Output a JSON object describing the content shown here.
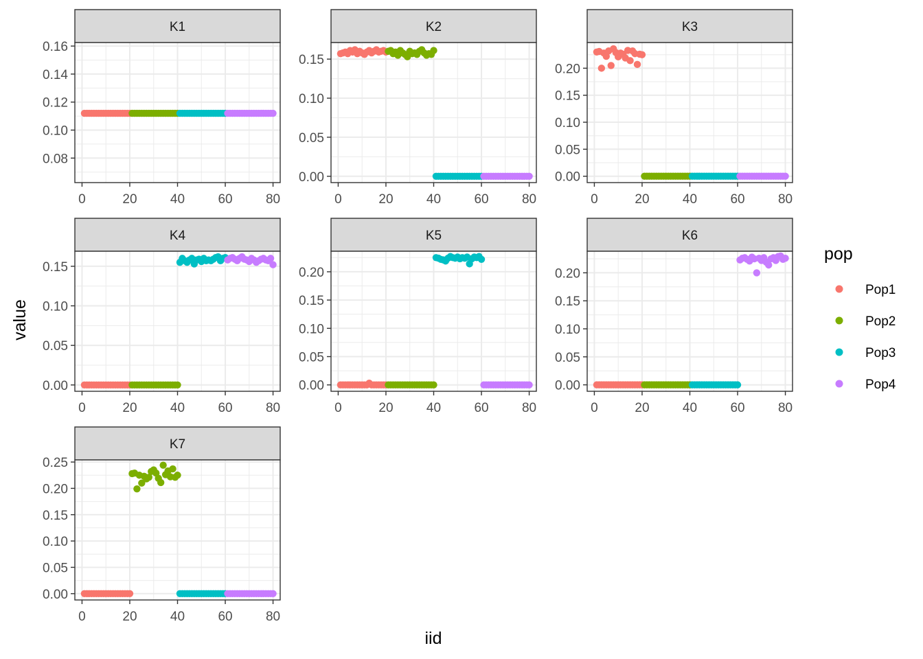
{
  "chart_data": {
    "type": "scatter",
    "xlabel": "iid",
    "ylabel": "value",
    "legend": {
      "title": "pop",
      "placement": "right",
      "entries": [
        {
          "name": "Pop1",
          "color": "#F8766D"
        },
        {
          "name": "Pop2",
          "color": "#7CAE00"
        },
        {
          "name": "Pop3",
          "color": "#00BFC4"
        },
        {
          "name": "Pop4",
          "color": "#C77CFF"
        }
      ]
    },
    "grid": true,
    "x_ticks": [
      0,
      20,
      40,
      60,
      80
    ],
    "xlim": [
      -3,
      83
    ],
    "panels": [
      {
        "title": "K1",
        "ylim": [
          0.0625,
          0.1625
        ],
        "y_ticks": [
          "0.08",
          "0.10",
          "0.12",
          "0.14",
          "0.16"
        ],
        "y_tick_values": [
          0.08,
          0.1,
          0.12,
          0.14,
          0.16
        ],
        "series": [
          {
            "name": "Pop1",
            "x_range": [
              1,
              20
            ],
            "values": [
              0.112,
              0.112,
              0.112,
              0.112,
              0.112,
              0.112,
              0.112,
              0.112,
              0.112,
              0.112,
              0.112,
              0.112,
              0.112,
              0.112,
              0.112,
              0.112,
              0.112,
              0.112,
              0.112,
              0.112
            ]
          },
          {
            "name": "Pop2",
            "x_range": [
              21,
              40
            ],
            "values": [
              0.112,
              0.112,
              0.112,
              0.112,
              0.112,
              0.112,
              0.112,
              0.112,
              0.112,
              0.112,
              0.112,
              0.112,
              0.112,
              0.112,
              0.112,
              0.112,
              0.112,
              0.112,
              0.112,
              0.112
            ]
          },
          {
            "name": "Pop3",
            "x_range": [
              41,
              60
            ],
            "values": [
              0.112,
              0.112,
              0.112,
              0.112,
              0.112,
              0.112,
              0.112,
              0.112,
              0.112,
              0.112,
              0.112,
              0.112,
              0.112,
              0.112,
              0.112,
              0.112,
              0.112,
              0.112,
              0.112,
              0.112
            ]
          },
          {
            "name": "Pop4",
            "x_range": [
              61,
              80
            ],
            "values": [
              0.112,
              0.112,
              0.112,
              0.112,
              0.112,
              0.112,
              0.112,
              0.112,
              0.112,
              0.112,
              0.112,
              0.112,
              0.112,
              0.112,
              0.112,
              0.112,
              0.112,
              0.112,
              0.112,
              0.112
            ]
          }
        ]
      },
      {
        "title": "K2",
        "ylim": [
          -0.0081,
          0.1712
        ],
        "y_ticks": [
          "0.00",
          "0.05",
          "0.10",
          "0.15"
        ],
        "y_tick_values": [
          0,
          0.05,
          0.1,
          0.15
        ],
        "series": [
          {
            "name": "Pop1",
            "x_range": [
              1,
              20
            ],
            "values": [
              0.157,
              0.158,
              0.159,
              0.157,
              0.161,
              0.159,
              0.162,
              0.157,
              0.16,
              0.158,
              0.156,
              0.159,
              0.161,
              0.158,
              0.16,
              0.162,
              0.159,
              0.16,
              0.161,
              0.159
            ]
          },
          {
            "name": "Pop2",
            "x_range": [
              21,
              40
            ],
            "values": [
              0.16,
              0.161,
              0.157,
              0.159,
              0.155,
              0.161,
              0.158,
              0.156,
              0.153,
              0.16,
              0.157,
              0.158,
              0.156,
              0.16,
              0.162,
              0.158,
              0.155,
              0.157,
              0.156,
              0.161
            ]
          },
          {
            "name": "Pop3",
            "x_range": [
              41,
              60
            ],
            "values": [
              0,
              0,
              0,
              0,
              0,
              0,
              0,
              0,
              0,
              0,
              0,
              0,
              0,
              0,
              0,
              0,
              0,
              0,
              0,
              0
            ]
          },
          {
            "name": "Pop4",
            "x_range": [
              61,
              80
            ],
            "values": [
              0,
              0,
              0,
              0,
              0,
              0,
              0,
              0,
              0,
              0,
              0,
              0,
              0,
              0,
              0,
              0,
              0,
              0,
              0,
              0
            ]
          }
        ]
      },
      {
        "title": "K3",
        "ylim": [
          -0.0118,
          0.2475
        ],
        "y_ticks": [
          "0.00",
          "0.05",
          "0.10",
          "0.15",
          "0.20"
        ],
        "y_tick_values": [
          0,
          0.05,
          0.1,
          0.15,
          0.2
        ],
        "series": [
          {
            "name": "Pop1",
            "x_range": [
              1,
              20
            ],
            "values": [
              0.23,
              0.231,
              0.2,
              0.228,
              0.222,
              0.232,
              0.205,
              0.236,
              0.229,
              0.221,
              0.228,
              0.226,
              0.219,
              0.233,
              0.214,
              0.232,
              0.227,
              0.207,
              0.226,
              0.225
            ]
          },
          {
            "name": "Pop2",
            "x_range": [
              21,
              40
            ],
            "values": [
              0,
              0,
              0,
              0,
              0,
              0,
              0,
              0,
              0,
              0,
              0,
              0,
              0,
              0,
              0,
              0,
              0,
              0,
              0,
              0
            ]
          },
          {
            "name": "Pop3",
            "x_range": [
              41,
              60
            ],
            "values": [
              0,
              0,
              0,
              0,
              0,
              0,
              0,
              0,
              0,
              0,
              0,
              0,
              0,
              0,
              0,
              0,
              0,
              0,
              0,
              0
            ]
          },
          {
            "name": "Pop4",
            "x_range": [
              61,
              80
            ],
            "values": [
              0,
              0,
              0,
              0,
              0,
              0,
              0,
              0,
              0,
              0,
              0,
              0,
              0,
              0,
              0,
              0,
              0,
              0,
              0,
              0
            ]
          }
        ]
      },
      {
        "title": "K4",
        "ylim": [
          -0.008,
          0.169
        ],
        "y_ticks": [
          "0.00",
          "0.05",
          "0.10",
          "0.15"
        ],
        "y_tick_values": [
          0,
          0.05,
          0.1,
          0.15
        ],
        "series": [
          {
            "name": "Pop1",
            "x_range": [
              1,
              20
            ],
            "values": [
              0,
              0,
              0,
              0,
              0,
              0,
              0,
              0,
              0,
              0,
              0,
              0,
              0,
              0,
              0,
              0,
              0,
              0,
              0,
              0
            ]
          },
          {
            "name": "Pop2",
            "x_range": [
              21,
              40
            ],
            "values": [
              0,
              0,
              0,
              0,
              0,
              0,
              0,
              0,
              0,
              0,
              0,
              0,
              0,
              0,
              0,
              0,
              0,
              0,
              0,
              0
            ]
          },
          {
            "name": "Pop3",
            "x_range": [
              41,
              60
            ],
            "values": [
              0.155,
              0.16,
              0.157,
              0.155,
              0.158,
              0.16,
              0.153,
              0.158,
              0.159,
              0.156,
              0.16,
              0.157,
              0.158,
              0.157,
              0.159,
              0.161,
              0.162,
              0.157,
              0.16,
              0.161
            ]
          },
          {
            "name": "Pop4",
            "x_range": [
              61,
              80
            ],
            "values": [
              0.158,
              0.16,
              0.161,
              0.159,
              0.157,
              0.16,
              0.162,
              0.159,
              0.158,
              0.156,
              0.16,
              0.158,
              0.155,
              0.157,
              0.159,
              0.16,
              0.158,
              0.157,
              0.16,
              0.152
            ]
          }
        ]
      },
      {
        "title": "K5",
        "ylim": [
          -0.0113,
          0.2363
        ],
        "y_ticks": [
          "0.00",
          "0.05",
          "0.10",
          "0.15",
          "0.20"
        ],
        "y_tick_values": [
          0,
          0.05,
          0.1,
          0.15,
          0.2
        ],
        "series": [
          {
            "name": "Pop1",
            "x_range": [
              1,
              20
            ],
            "values": [
              0,
              0,
              0,
              0,
              0,
              0,
              0,
              0,
              0,
              0,
              0,
              0,
              0.003,
              0,
              0,
              0,
              0,
              0,
              0,
              0
            ]
          },
          {
            "name": "Pop2",
            "x_range": [
              21,
              40
            ],
            "values": [
              0,
              0,
              0,
              0,
              0,
              0,
              0,
              0,
              0,
              0,
              0,
              0,
              0,
              0,
              0,
              0,
              0,
              0,
              0,
              0
            ]
          },
          {
            "name": "Pop3",
            "x_range": [
              41,
              60
            ],
            "values": [
              0.225,
              0.224,
              0.222,
              0.221,
              0.219,
              0.224,
              0.227,
              0.225,
              0.224,
              0.226,
              0.223,
              0.225,
              0.224,
              0.226,
              0.214,
              0.223,
              0.226,
              0.225,
              0.227,
              0.222
            ]
          },
          {
            "name": "Pop4",
            "x_range": [
              61,
              80
            ],
            "values": [
              0,
              0,
              0,
              0,
              0,
              0,
              0,
              0,
              0,
              0,
              0,
              0,
              0,
              0,
              0,
              0,
              0,
              0,
              0,
              0
            ]
          }
        ]
      },
      {
        "title": "K6",
        "ylim": [
          -0.0115,
          0.2385
        ],
        "y_ticks": [
          "0.00",
          "0.05",
          "0.10",
          "0.15",
          "0.20"
        ],
        "y_tick_values": [
          0,
          0.05,
          0.1,
          0.15,
          0.2
        ],
        "series": [
          {
            "name": "Pop1",
            "x_range": [
              1,
              20
            ],
            "values": [
              0,
              0,
              0,
              0,
              0,
              0,
              0,
              0,
              0,
              0,
              0,
              0,
              0,
              0,
              0,
              0,
              0,
              0,
              0,
              0
            ]
          },
          {
            "name": "Pop2",
            "x_range": [
              21,
              40
            ],
            "values": [
              0,
              0,
              0,
              0,
              0,
              0,
              0,
              0,
              0,
              0,
              0,
              0,
              0,
              0,
              0,
              0,
              0,
              0,
              0,
              0
            ]
          },
          {
            "name": "Pop3",
            "x_range": [
              41,
              60
            ],
            "values": [
              0,
              0,
              0,
              0,
              0,
              0,
              0,
              0,
              0,
              0,
              0,
              0,
              0,
              0,
              0,
              0,
              0,
              0,
              0,
              0
            ]
          },
          {
            "name": "Pop4",
            "x_range": [
              61,
              80
            ],
            "values": [
              0.223,
              0.226,
              0.227,
              0.224,
              0.221,
              0.228,
              0.225,
              0.2,
              0.226,
              0.222,
              0.227,
              0.219,
              0.214,
              0.225,
              0.227,
              0.222,
              0.229,
              0.23,
              0.224,
              0.226
            ]
          }
        ]
      },
      {
        "title": "K7",
        "ylim": [
          -0.012,
          0.254
        ],
        "y_ticks": [
          "0.00",
          "0.05",
          "0.10",
          "0.15",
          "0.20",
          "0.25"
        ],
        "y_tick_values": [
          0,
          0.05,
          0.1,
          0.15,
          0.2,
          0.25
        ],
        "series": [
          {
            "name": "Pop1",
            "x_range": [
              1,
              20
            ],
            "values": [
              0,
              0,
              0,
              0,
              0,
              0,
              0,
              0,
              0,
              0,
              0,
              0,
              0,
              0,
              0,
              0,
              0,
              0,
              0,
              0
            ]
          },
          {
            "name": "Pop2",
            "x_range": [
              21,
              40
            ],
            "values": [
              0.228,
              0.229,
              0.199,
              0.225,
              0.21,
              0.223,
              0.218,
              0.221,
              0.232,
              0.235,
              0.229,
              0.219,
              0.211,
              0.244,
              0.226,
              0.233,
              0.222,
              0.237,
              0.221,
              0.225
            ]
          },
          {
            "name": "Pop3",
            "x_range": [
              41,
              60
            ],
            "values": [
              0,
              0,
              0,
              0,
              0,
              0,
              0,
              0,
              0,
              0,
              0,
              0,
              0,
              0,
              0,
              0,
              0,
              0,
              0,
              0
            ]
          },
          {
            "name": "Pop4",
            "x_range": [
              61,
              80
            ],
            "values": [
              0,
              0,
              0,
              0,
              0,
              0,
              0,
              0,
              0,
              0,
              0,
              0,
              0,
              0,
              0,
              0,
              0,
              0,
              0,
              0
            ]
          }
        ]
      }
    ]
  }
}
